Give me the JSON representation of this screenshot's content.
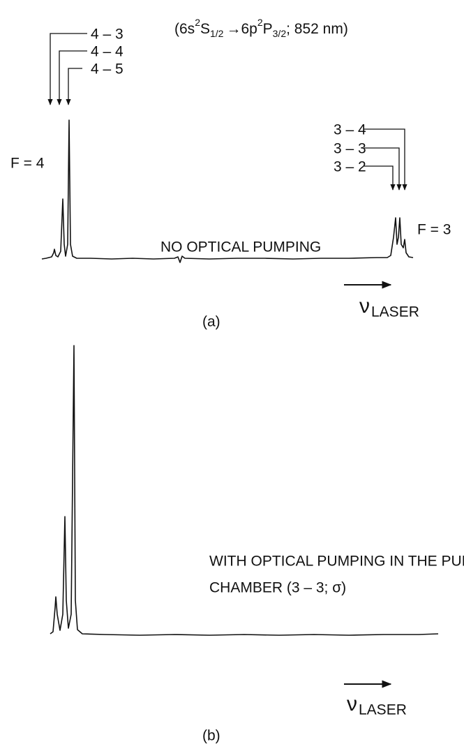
{
  "header": {
    "open": "(6s",
    "sup1": "2",
    "s": "S",
    "sub1": "1/2",
    "arrow": "→6p",
    "sup2": "2",
    "p": "P",
    "sub2": "3/2",
    "close": "; 852 nm)"
  },
  "panel_a": {
    "labels_left": [
      "4 – 3",
      "4 – 4",
      "4 – 5"
    ],
    "labels_right": [
      "3 – 4",
      "3 – 3",
      "3 – 2"
    ],
    "f_left": "F = 4",
    "f_right": "F = 3",
    "note": "NO OPTICAL PUMPING",
    "nu": "ν",
    "laser": "LASER",
    "caption": "(a)"
  },
  "panel_b": {
    "note_line1": "WITH OPTICAL PUMPING IN THE PUMPING",
    "note_line2": "CHAMBER (3 – 3; σ)",
    "nu": "ν",
    "laser": "LASER",
    "caption": "(b)"
  }
}
